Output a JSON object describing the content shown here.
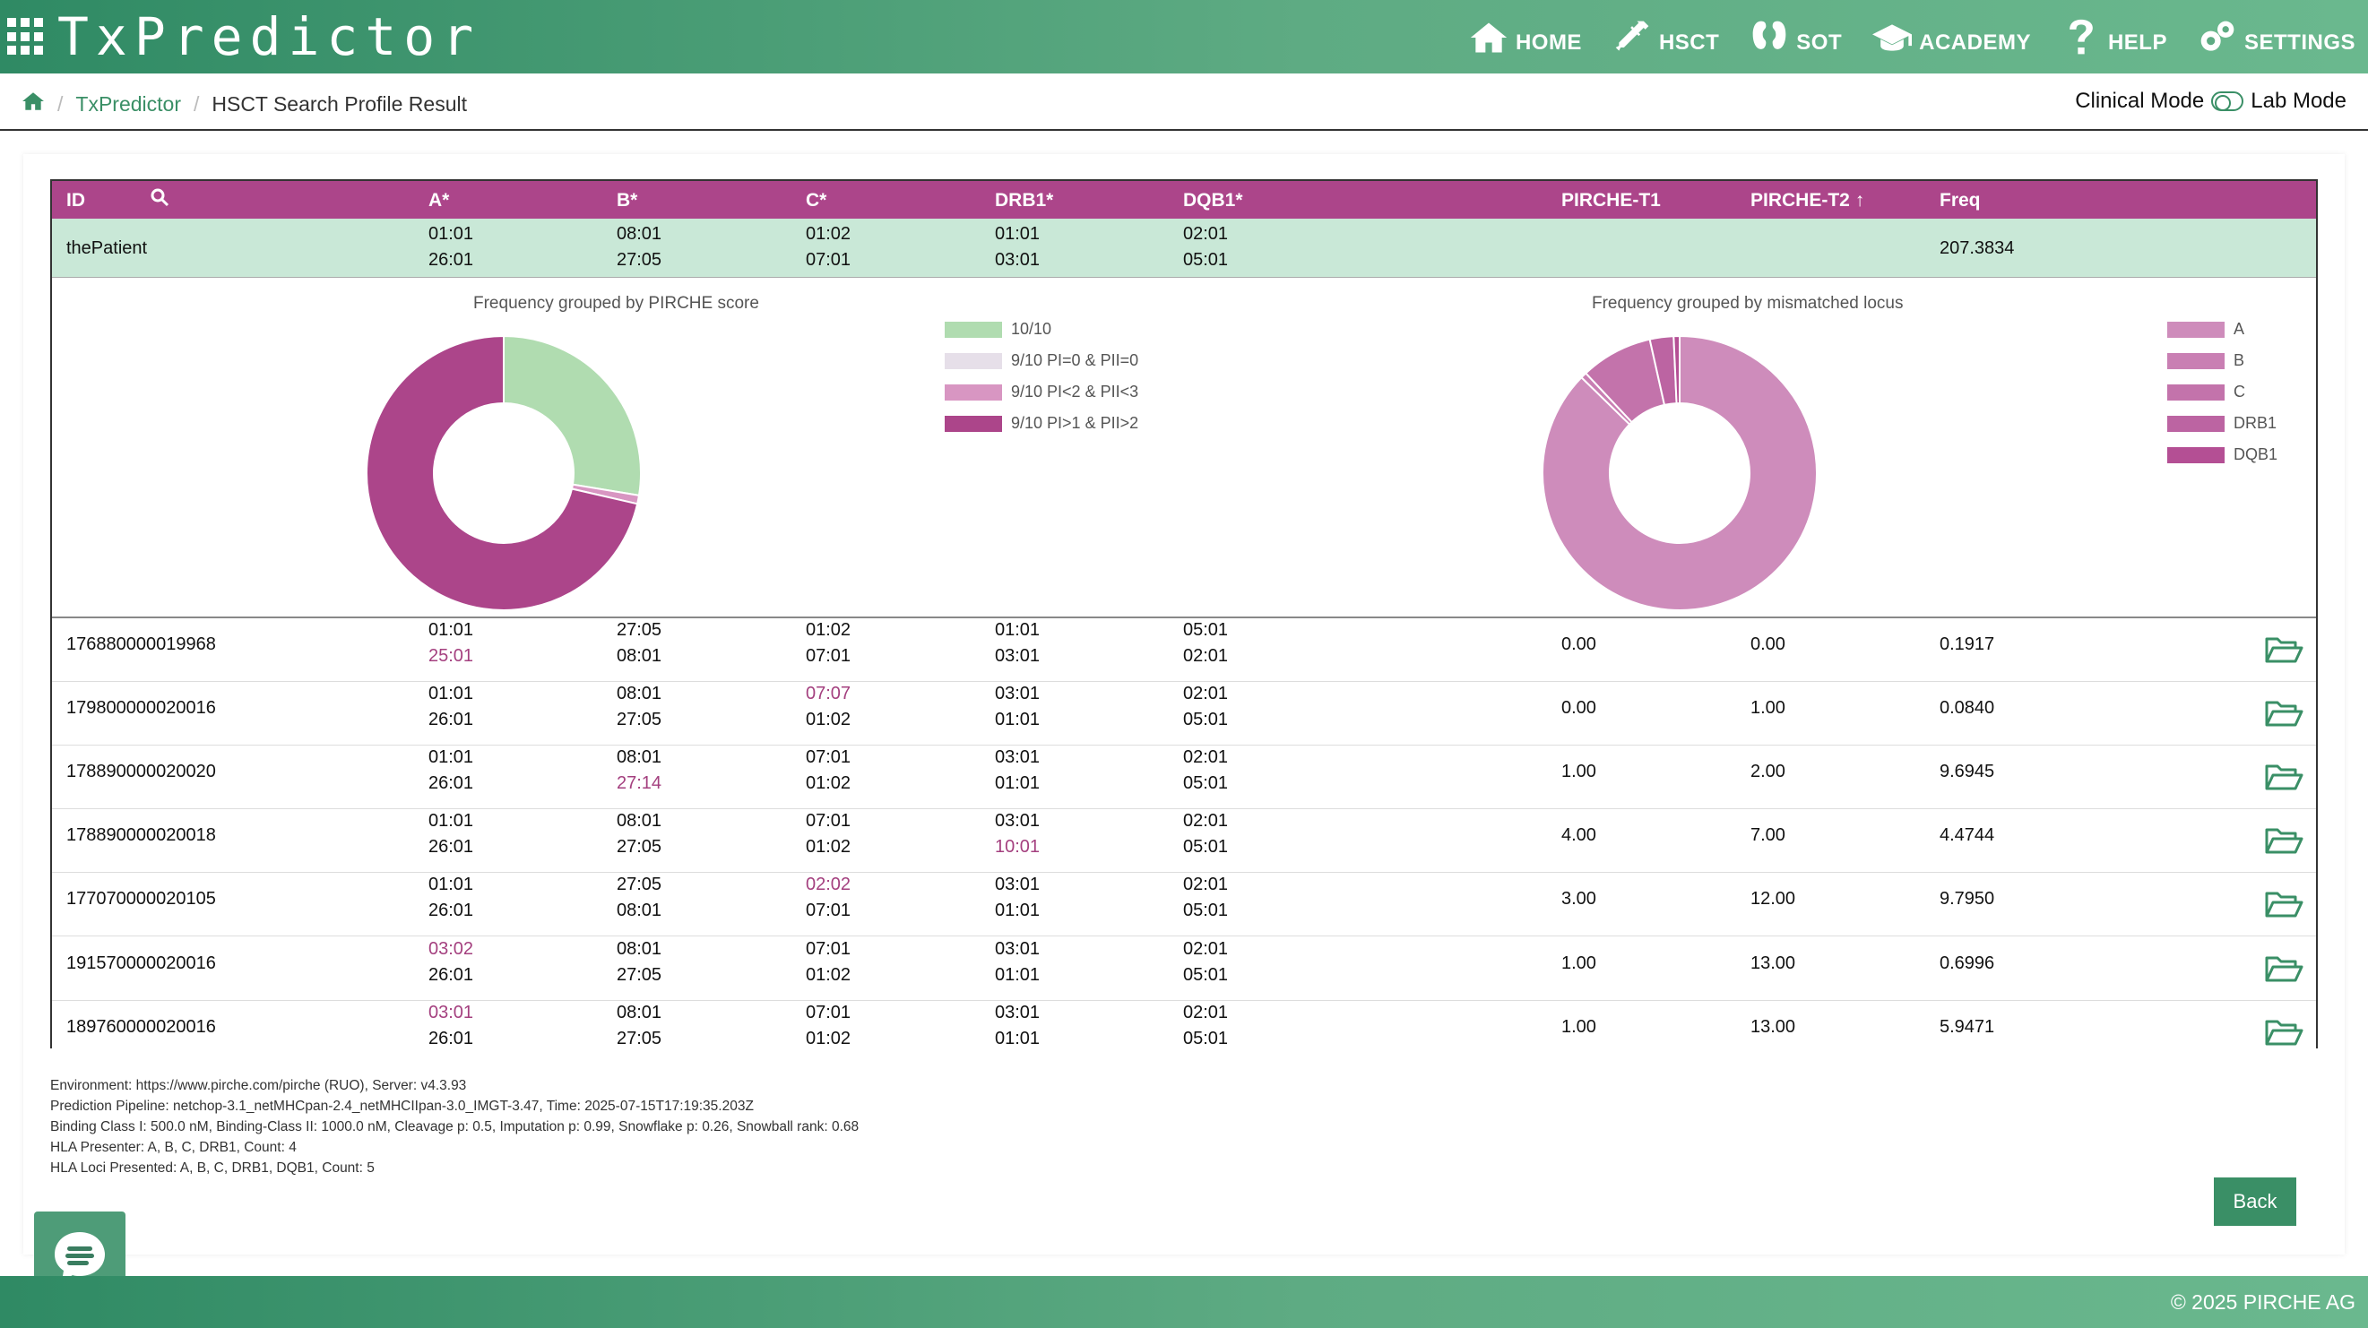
{
  "app": {
    "logo_text": "TxPredictor"
  },
  "nav": [
    {
      "id": "home",
      "label": "HOME",
      "icon": "home-icon"
    },
    {
      "id": "hsct",
      "label": "HSCT",
      "icon": "syringe-icon"
    },
    {
      "id": "sot",
      "label": "SOT",
      "icon": "kidney-icon"
    },
    {
      "id": "academy",
      "label": "ACADEMY",
      "icon": "graduation-cap-icon"
    },
    {
      "id": "help",
      "label": "HELP",
      "icon": "question-icon"
    },
    {
      "id": "settings",
      "label": "SETTINGS",
      "icon": "gears-icon"
    }
  ],
  "breadcrumb": {
    "link": "TxPredictor",
    "sep": "/",
    "current": "HSCT Search Profile Result"
  },
  "mode": {
    "left": "Clinical Mode",
    "right": "Lab Mode"
  },
  "table": {
    "headers": {
      "id": "ID",
      "a": "A*",
      "b": "B*",
      "c": "C*",
      "drb1": "DRB1*",
      "dqb1": "DQB1*",
      "t1": "PIRCHE-T1",
      "t2": "PIRCHE-T2",
      "t2_sort": "↑",
      "freq": "Freq"
    },
    "patient": {
      "id": "thePatient",
      "a1": "01:01",
      "a2": "26:01",
      "b1": "08:01",
      "b2": "27:05",
      "c1": "01:02",
      "c2": "07:01",
      "drb1_1": "01:01",
      "drb1_2": "03:01",
      "dqb1_1": "02:01",
      "dqb1_2": "05:01",
      "freq": "207.3834"
    },
    "rows": [
      {
        "id": "176880000019968",
        "a": [
          "01:01",
          "25:01"
        ],
        "b": [
          "27:05",
          "08:01"
        ],
        "c": [
          "01:02",
          "07:01"
        ],
        "drb1": [
          "01:01",
          "03:01"
        ],
        "dqb1": [
          "05:01",
          "02:01"
        ],
        "mm": [
          "a2"
        ],
        "t1": "0.00",
        "t2": "0.00",
        "freq": "0.1917"
      },
      {
        "id": "179800000020016",
        "a": [
          "01:01",
          "26:01"
        ],
        "b": [
          "08:01",
          "27:05"
        ],
        "c": [
          "07:07",
          "01:02"
        ],
        "drb1": [
          "03:01",
          "01:01"
        ],
        "dqb1": [
          "02:01",
          "05:01"
        ],
        "mm": [
          "c1"
        ],
        "t1": "0.00",
        "t2": "1.00",
        "freq": "0.0840"
      },
      {
        "id": "178890000020020",
        "a": [
          "01:01",
          "26:01"
        ],
        "b": [
          "08:01",
          "27:14"
        ],
        "c": [
          "07:01",
          "01:02"
        ],
        "drb1": [
          "03:01",
          "01:01"
        ],
        "dqb1": [
          "02:01",
          "05:01"
        ],
        "mm": [
          "b2"
        ],
        "t1": "1.00",
        "t2": "2.00",
        "freq": "9.6945"
      },
      {
        "id": "178890000020018",
        "a": [
          "01:01",
          "26:01"
        ],
        "b": [
          "08:01",
          "27:05"
        ],
        "c": [
          "07:01",
          "01:02"
        ],
        "drb1": [
          "03:01",
          "10:01"
        ],
        "dqb1": [
          "02:01",
          "05:01"
        ],
        "mm": [
          "drb1_2"
        ],
        "t1": "4.00",
        "t2": "7.00",
        "freq": "4.4744"
      },
      {
        "id": "177070000020105",
        "a": [
          "01:01",
          "26:01"
        ],
        "b": [
          "27:05",
          "08:01"
        ],
        "c": [
          "02:02",
          "07:01"
        ],
        "drb1": [
          "03:01",
          "01:01"
        ],
        "dqb1": [
          "02:01",
          "05:01"
        ],
        "mm": [
          "c1"
        ],
        "t1": "3.00",
        "t2": "12.00",
        "freq": "9.7950"
      },
      {
        "id": "191570000020016",
        "a": [
          "03:02",
          "26:01"
        ],
        "b": [
          "08:01",
          "27:05"
        ],
        "c": [
          "07:01",
          "01:02"
        ],
        "drb1": [
          "03:01",
          "01:01"
        ],
        "dqb1": [
          "02:01",
          "05:01"
        ],
        "mm": [
          "a1"
        ],
        "t1": "1.00",
        "t2": "13.00",
        "freq": "0.6996"
      },
      {
        "id": "189760000020016",
        "a": [
          "03:01",
          "26:01"
        ],
        "b": [
          "08:01",
          "27:05"
        ],
        "c": [
          "07:01",
          "01:02"
        ],
        "drb1": [
          "03:01",
          "01:01"
        ],
        "dqb1": [
          "02:01",
          "05:01"
        ],
        "mm": [
          "a1"
        ],
        "t1": "1.00",
        "t2": "13.00",
        "freq": "5.9471"
      }
    ]
  },
  "charts": {
    "pirche": {
      "title": "Frequency grouped by PIRCHE score",
      "legend": [
        "10/10",
        "9/10 PI=0 & PII=0",
        "9/10 PI<2 & PII<3",
        "9/10 PI>1 & PII>2"
      ],
      "colors": [
        "#b0dcb0",
        "#e6dfe9",
        "#d896c2",
        "#ac458a"
      ],
      "values": [
        0.276,
        0.0,
        0.01,
        0.714
      ]
    },
    "locus": {
      "title": "Frequency grouped by mismatched locus",
      "legend": [
        "A",
        "B",
        "C",
        "DRB1",
        "DQB1"
      ],
      "colors": [
        "#ce8cbb",
        "#c97fb3",
        "#c373ab",
        "#bc64a2",
        "#b44f94"
      ],
      "values": [
        0.873,
        0.007,
        0.085,
        0.028,
        0.007
      ]
    }
  },
  "footer_info": [
    "Environment: https://www.pirche.com/pirche (RUO), Server: v4.3.93",
    "Prediction Pipeline: netchop-3.1_netMHCpan-2.4_netMHCIIpan-3.0_IMGT-3.47, Time: 2025-07-15T17:19:35.203Z",
    "Binding Class I: 500.0 nM, Binding-Class II: 1000.0 nM, Cleavage p: 0.5, Imputation p: 0.99, Snowflake p: 0.26, Snowball rank: 0.68",
    "HLA Presenter: A, B, C, DRB1, Count: 4",
    "HLA Loci Presented: A, B, C, DRB1, DQB1, Count: 5"
  ],
  "back_label": "Back",
  "copyright": "© 2025 PIRCHE AG"
}
